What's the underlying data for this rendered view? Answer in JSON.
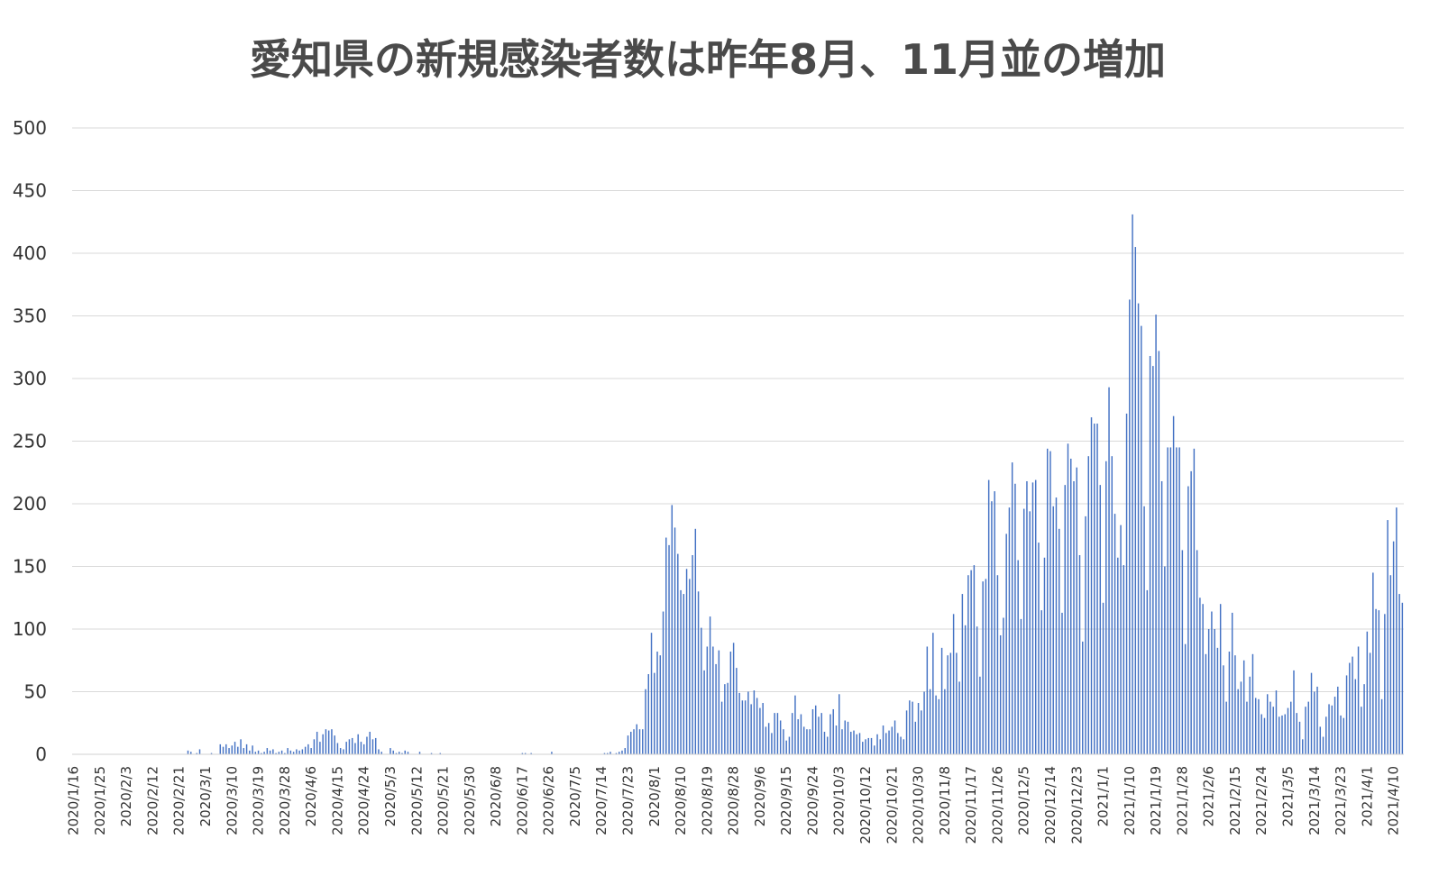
{
  "chart_data": {
    "type": "bar",
    "title": "愛知県の新規感染者数は昨年8月、11月並の増加",
    "xlabel": "",
    "ylabel": "",
    "ylim": [
      0,
      500
    ],
    "yticks": [
      0,
      50,
      100,
      150,
      200,
      250,
      300,
      350,
      400,
      450,
      500
    ],
    "grid": true,
    "legend": "none",
    "bar_color": "#4472c4",
    "x_start": "2020-01-16",
    "x_end": "2021-04-10",
    "tick_labels": [
      "2020/1/16",
      "2020/1/25",
      "2020/2/3",
      "2020/2/12",
      "2020/2/21",
      "2020/3/1",
      "2020/3/10",
      "2020/3/19",
      "2020/3/28",
      "2020/4/6",
      "2020/4/15",
      "2020/4/24",
      "2020/5/3",
      "2020/5/12",
      "2020/5/21",
      "2020/5/30",
      "2020/6/8",
      "2020/6/17",
      "2020/6/26",
      "2020/7/5",
      "2020/7/14",
      "2020/7/23",
      "2020/8/1",
      "2020/8/10",
      "2020/8/19",
      "2020/8/28",
      "2020/9/6",
      "2020/9/15",
      "2020/9/24",
      "2020/10/3",
      "2020/10/12",
      "2020/10/21",
      "2020/10/30",
      "2020/11/8",
      "2020/11/17",
      "2020/11/26",
      "2020/12/5",
      "2020/12/14",
      "2020/12/23",
      "2021/1/1",
      "2021/1/10",
      "2021/1/19",
      "2021/1/28",
      "2021/2/6",
      "2021/2/15",
      "2021/2/24",
      "2021/3/5",
      "2021/3/14",
      "2021/3/23",
      "2021/4/1",
      "2021/4/10"
    ],
    "values": [
      0,
      0,
      0,
      0,
      0,
      0,
      0,
      0,
      0,
      0,
      0,
      0,
      0,
      0,
      0,
      0,
      0,
      0,
      0,
      0,
      0,
      0,
      0,
      0,
      0,
      0,
      0,
      0,
      0,
      0,
      0,
      0,
      0,
      0,
      0,
      0,
      0,
      0,
      0,
      3,
      2,
      0,
      1,
      4,
      0,
      0,
      0,
      1,
      0,
      0,
      8,
      6,
      8,
      5,
      7,
      10,
      6,
      12,
      5,
      8,
      3,
      7,
      2,
      3,
      1,
      2,
      5,
      3,
      4,
      1,
      2,
      3,
      1,
      5,
      3,
      2,
      4,
      3,
      4,
      6,
      8,
      5,
      12,
      18,
      10,
      16,
      20,
      19,
      20,
      15,
      9,
      5,
      4,
      10,
      12,
      13,
      9,
      16,
      10,
      8,
      14,
      18,
      12,
      13,
      4,
      2,
      0,
      0,
      5,
      3,
      1,
      2,
      1,
      3,
      2,
      0,
      0,
      0,
      2,
      0,
      0,
      0,
      1,
      0,
      0,
      1,
      0,
      0,
      0,
      0,
      0,
      0,
      0,
      0,
      0,
      0,
      0,
      0,
      0,
      0,
      0,
      0,
      0,
      0,
      0,
      0,
      0,
      0,
      0,
      0,
      0,
      0,
      0,
      1,
      1,
      0,
      1,
      0,
      0,
      0,
      0,
      0,
      0,
      2,
      0,
      0,
      0,
      0,
      0,
      0,
      0,
      0,
      0,
      0,
      0,
      0,
      0,
      0,
      0,
      0,
      0,
      1,
      1,
      2,
      0,
      1,
      2,
      3,
      5,
      15,
      18,
      20,
      24,
      20,
      20,
      52,
      64,
      97,
      65,
      82,
      79,
      114,
      173,
      167,
      199,
      181,
      160,
      131,
      128,
      148,
      140,
      159,
      180,
      130,
      101,
      67,
      86,
      110,
      86,
      72,
      83,
      42,
      56,
      57,
      82,
      89,
      69,
      49,
      43,
      43,
      50,
      40,
      51,
      45,
      37,
      41,
      22,
      25,
      17,
      33,
      33,
      27,
      20,
      11,
      14,
      33,
      47,
      28,
      32,
      22,
      20,
      20,
      36,
      39,
      30,
      33,
      18,
      14,
      32,
      36,
      23,
      48,
      20,
      27,
      26,
      18,
      19,
      16,
      17,
      10,
      12,
      13,
      13,
      7,
      16,
      12,
      23,
      17,
      19,
      22,
      27,
      17,
      14,
      12,
      35,
      43,
      42,
      26,
      41,
      35,
      50,
      86,
      52,
      97,
      47,
      44,
      85,
      52,
      79,
      81,
      112,
      81,
      58,
      128,
      103,
      143,
      147,
      151,
      102,
      62,
      138,
      140,
      219,
      202,
      210,
      143,
      95,
      109,
      176,
      197,
      233,
      216,
      155,
      108,
      196,
      218,
      194,
      217,
      219,
      169,
      115,
      157,
      244,
      242,
      198,
      205,
      180,
      113,
      215,
      248,
      236,
      218,
      229,
      159,
      90,
      190,
      238,
      269,
      264,
      264,
      215,
      121,
      234,
      293,
      238,
      192,
      157,
      183,
      151,
      272,
      363,
      431,
      405,
      360,
      342,
      198,
      131,
      318,
      310,
      351,
      322,
      218,
      150,
      245,
      245,
      270,
      245,
      245,
      163,
      88,
      214,
      226,
      244,
      163,
      125,
      120,
      80,
      100,
      114,
      100,
      85,
      120,
      71,
      42,
      82,
      113,
      79,
      52,
      58,
      75,
      42,
      62,
      80,
      45,
      44,
      32,
      29,
      48,
      42,
      38,
      51,
      30,
      31,
      32,
      37,
      42,
      67,
      33,
      26,
      12,
      38,
      42,
      65,
      50,
      54,
      22,
      14,
      30,
      40,
      39,
      46,
      54,
      31,
      29,
      63,
      73,
      78,
      60,
      86,
      38,
      56,
      98,
      81,
      145,
      116,
      115,
      44,
      112,
      187,
      143,
      170,
      197,
      128,
      121
    ]
  }
}
